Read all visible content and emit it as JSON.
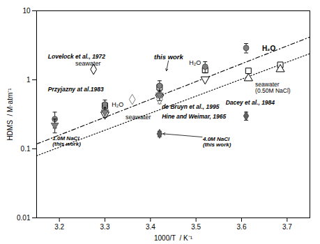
{
  "chart_data": {
    "type": "scatter",
    "log": "y",
    "grid": false,
    "xlabel": "1000/T  / K⁻¹",
    "ylabel": "HDMS  / M·atm⁻¹",
    "xlim": [
      3.15,
      3.75
    ],
    "ylim": [
      0.01,
      10
    ],
    "xticks": [
      3.2,
      3.3,
      3.4,
      3.5,
      3.6,
      3.7
    ],
    "yticks": [
      0.01,
      0.1,
      1,
      10
    ],
    "series": [
      {
        "type": "line",
        "line_style": "dashdot",
        "color": "black",
        "x": [
          3.15,
          3.75
        ],
        "values": [
          0.1174897554939529,
          4.168693834703354
        ]
      },
      {
        "type": "line",
        "line_style": "dotted",
        "color": "black",
        "x": [
          3.15,
          3.75
        ],
        "values": [
          0.07943282347242814,
          2.398832919019491
        ]
      },
      {
        "type": "scatter",
        "marker": "circle",
        "color": "#808080",
        "x": [
          3.19,
          3.3,
          3.42,
          3.52,
          3.61
        ],
        "values": [
          0.27,
          0.44,
          0.82,
          1.55,
          2.9
        ],
        "yerr": [
          0.07,
          0.07,
          0.15,
          0.28,
          0.45
        ]
      },
      {
        "type": "scatter",
        "marker": "triangle-down",
        "color": "#808080",
        "x": [
          3.19,
          3.3,
          3.42
        ],
        "values": [
          0.22,
          0.34,
          0.6
        ],
        "yerr": [
          0.05,
          0.055,
          0.1
        ]
      },
      {
        "type": "scatter",
        "marker": "diamond",
        "color": "#606060",
        "x": [
          3.42,
          3.61
        ],
        "values": [
          0.165,
          0.3
        ],
        "yerr": [
          0.015,
          0.04
        ]
      },
      {
        "type": "scatter",
        "marker": "open-diamond",
        "color": "black",
        "x": [
          3.275
        ],
        "values": [
          1.42
        ]
      },
      {
        "type": "scatter",
        "marker": "open-square",
        "color": "black",
        "x": [
          3.615,
          3.685
        ],
        "values": [
          1.35,
          1.65
        ]
      },
      {
        "type": "scatter",
        "marker": "open-triangle-up",
        "color": "black",
        "x": [
          3.615,
          3.685
        ],
        "values": [
          1.05,
          1.42
        ]
      },
      {
        "type": "scatter",
        "marker": "open-square",
        "color": "black",
        "x": [
          3.3,
          3.42,
          3.52
        ],
        "values": [
          0.42,
          0.78,
          1.38
        ]
      },
      {
        "type": "scatter",
        "marker": "open-triangle-down",
        "color": "black",
        "x": [
          3.3,
          3.42,
          3.52
        ],
        "values": [
          0.315,
          0.56,
          1.02
        ]
      },
      {
        "type": "scatter",
        "marker": "open-diamond",
        "color": "gray",
        "x": [
          3.36,
          3.42
        ],
        "values": [
          0.52,
          0.6
        ]
      },
      {
        "type": "scatter",
        "marker": "open-diamond",
        "color": "gray",
        "x": [
          3.42
        ],
        "values": [
          0.52
        ],
        "yerr": [
          0.07
        ]
      }
    ],
    "annotations": [
      {
        "text": "H₂O",
        "x": 3.645,
        "y": 2.85
      },
      {
        "text": "this work",
        "x": 3.44,
        "y": 1.98,
        "arrow_to": [
          3.435,
          1.35
        ]
      },
      {
        "text": "H₂O",
        "x": 3.485,
        "y": 1.65
      },
      {
        "text": "Lovelock et al., 1972",
        "x": 3.175,
        "y": 2.05
      },
      {
        "text": "seawater",
        "x": 3.235,
        "y": 1.6
      },
      {
        "text": "Przyjazny at al.1983",
        "x": 3.175,
        "y": 0.685
      },
      {
        "text": "H₂O",
        "x": 3.315,
        "y": 0.435
      },
      {
        "text": "seawater",
        "x": 3.345,
        "y": 0.29
      },
      {
        "text": "de Bruyn et al., 1995",
        "x": 3.425,
        "y": 0.38
      },
      {
        "text": "Hine and Weimar, 1965",
        "x": 3.425,
        "y": 0.275
      },
      {
        "text": "seawater\n(0.50M NaCl)",
        "x": 3.63,
        "y": 0.92
      },
      {
        "text": "Dacey et al., 1984",
        "x": 3.565,
        "y": 0.735
      },
      {
        "text": "1.0M NaCl\n(this work)",
        "x": 3.185,
        "y": 0.165
      },
      {
        "text": "4.0M NaCl\n(this work)",
        "x": 3.515,
        "y": 0.148,
        "arrow_to": [
          3.42,
          0.167
        ]
      }
    ]
  }
}
